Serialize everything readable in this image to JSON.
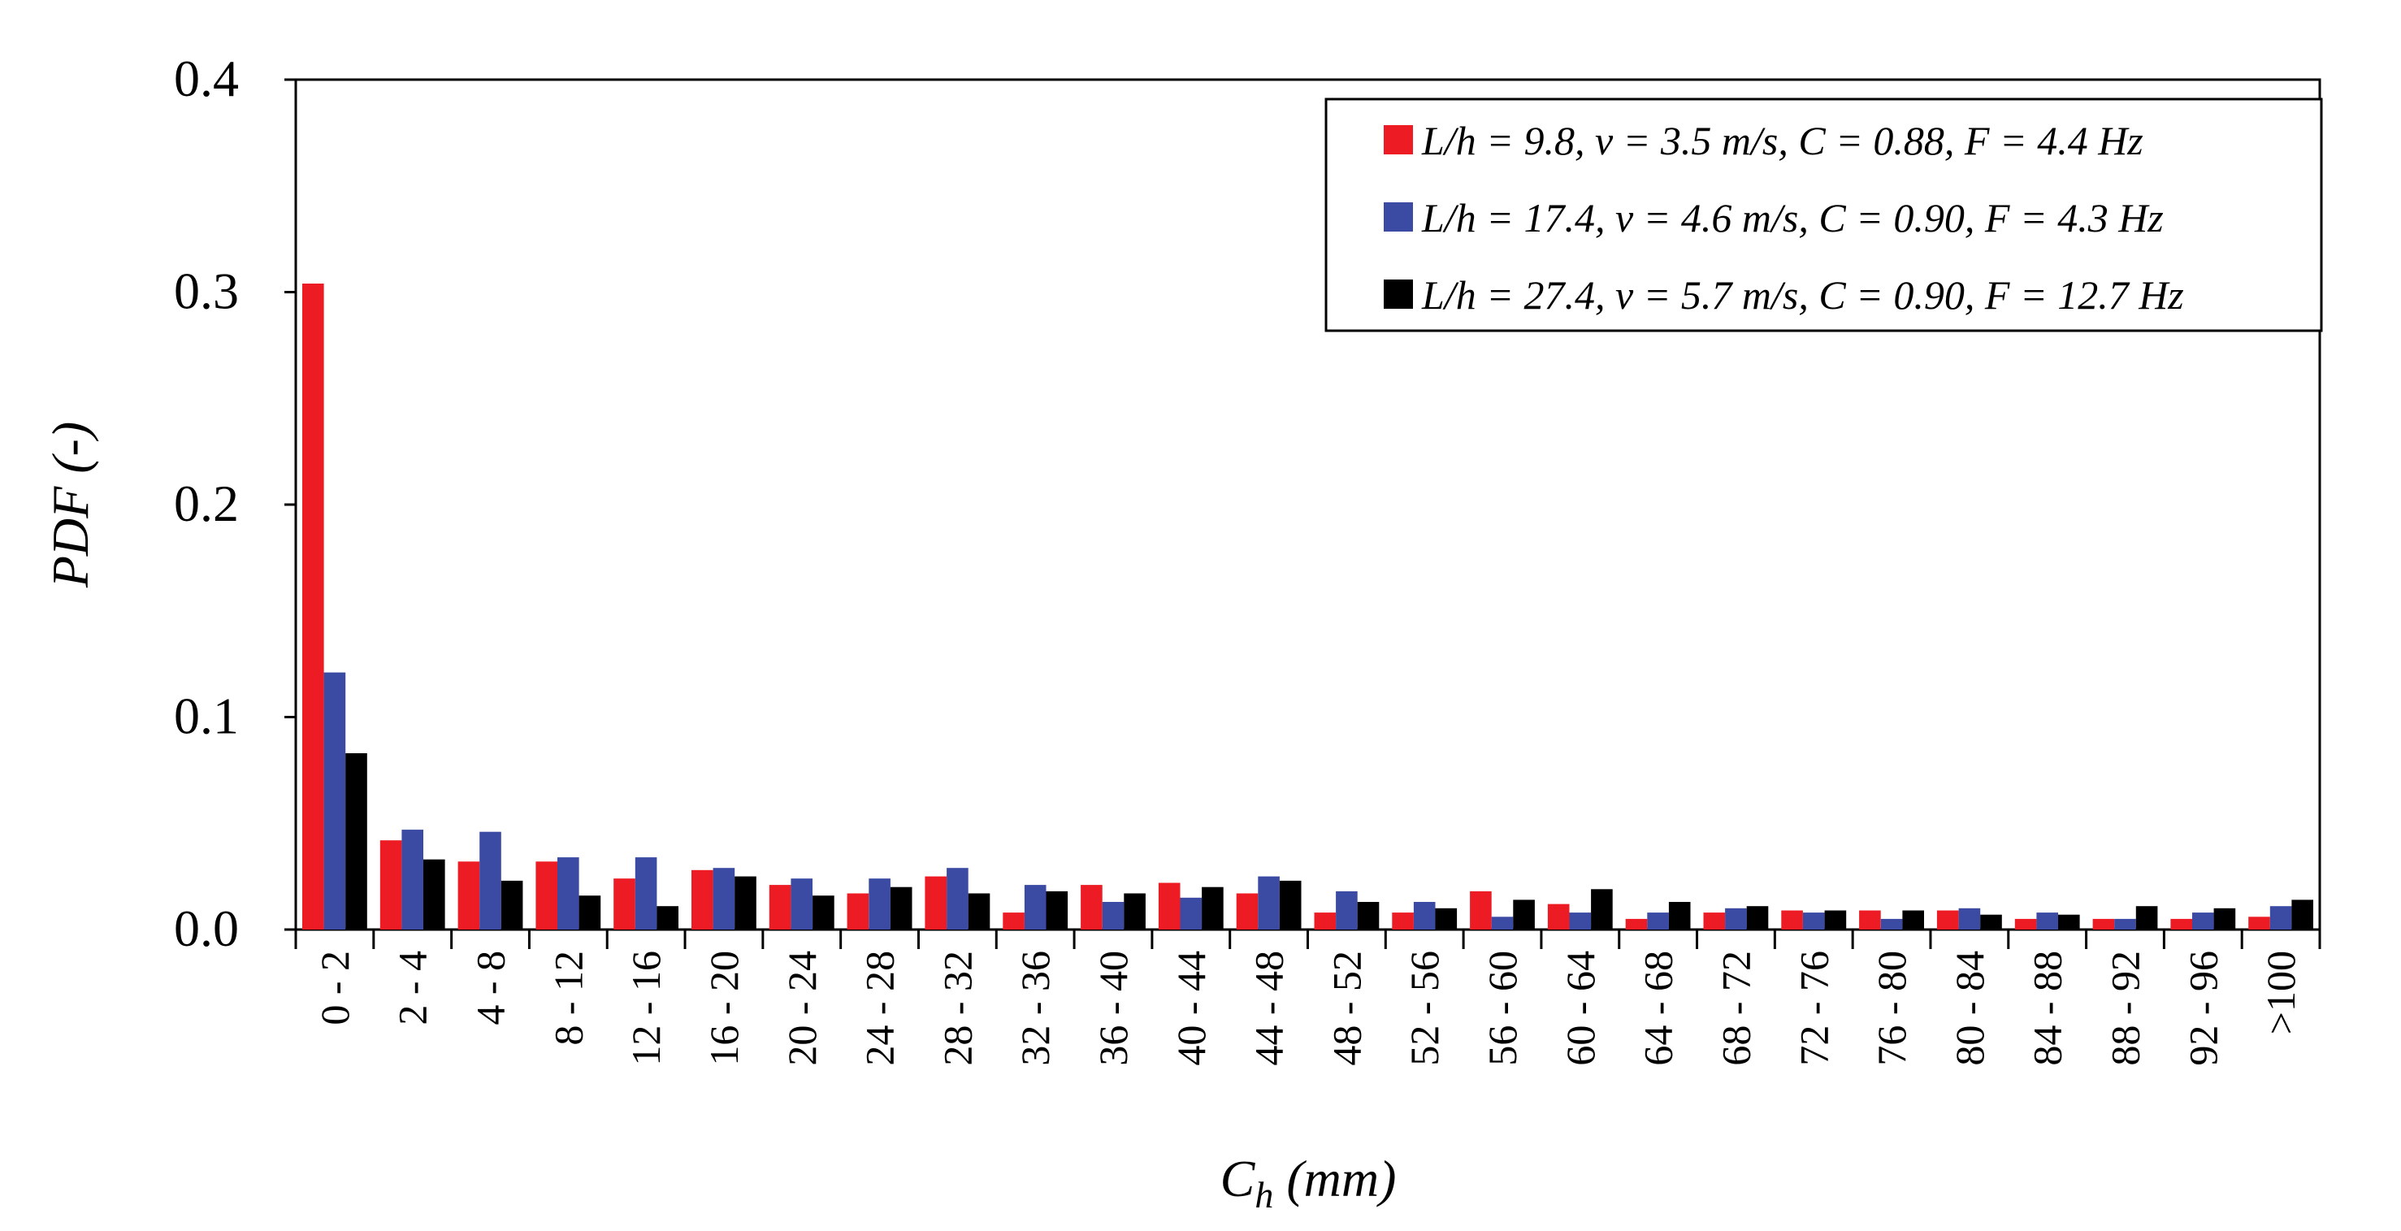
{
  "chart_data": {
    "type": "bar",
    "title": "",
    "xlabel": "C",
    "xlabel_sub": "h",
    "xlabel_unit": " (mm)",
    "ylabel": "PDF (-)",
    "ylim": [
      0,
      0.4
    ],
    "yticks": [
      "0.0",
      "0.1",
      "0.2",
      "0.3",
      "0.4"
    ],
    "legend_position": "top-right",
    "grid": false,
    "categories": [
      "0 - 2",
      "2 - 4",
      "4 - 8",
      "8 - 12",
      "12 - 16",
      "16 - 20",
      "20 - 24",
      "24 - 28",
      "28 - 32",
      "32 - 36",
      "36 - 40",
      "40 - 44",
      "44 - 48",
      "48 - 52",
      "52 - 56",
      "56 - 60",
      "60 - 64",
      "64 - 68",
      "68 - 72",
      "72 - 76",
      "76 - 80",
      "80 - 84",
      "84 - 88",
      "88 - 92",
      "92 - 96",
      ">100"
    ],
    "series": [
      {
        "name": "L/h = 9.8, v = 3.5 m/s, C = 0.88, F = 4.4 Hz",
        "color": "#ed1c24",
        "values": [
          0.304,
          0.042,
          0.032,
          0.032,
          0.024,
          0.028,
          0.021,
          0.017,
          0.025,
          0.008,
          0.021,
          0.022,
          0.017,
          0.008,
          0.008,
          0.018,
          0.012,
          0.005,
          0.008,
          0.009,
          0.009,
          0.009,
          0.005,
          0.005,
          0.005,
          0.006
        ]
      },
      {
        "name": "L/h = 17.4, v = 4.6 m/s, C = 0.90, F = 4.3 Hz",
        "color": "#3b4aa3",
        "values": [
          0.121,
          0.047,
          0.046,
          0.034,
          0.034,
          0.029,
          0.024,
          0.024,
          0.029,
          0.021,
          0.013,
          0.015,
          0.025,
          0.018,
          0.013,
          0.006,
          0.008,
          0.008,
          0.01,
          0.008,
          0.005,
          0.01,
          0.008,
          0.005,
          0.008,
          0.011
        ]
      },
      {
        "name": "L/h = 27.4, v = 5.7 m/s, C = 0.90, F = 12.7 Hz",
        "color": "#000000",
        "values": [
          0.083,
          0.033,
          0.023,
          0.016,
          0.011,
          0.025,
          0.016,
          0.02,
          0.017,
          0.018,
          0.017,
          0.02,
          0.023,
          0.013,
          0.01,
          0.014,
          0.019,
          0.013,
          0.011,
          0.009,
          0.009,
          0.007,
          0.007,
          0.011,
          0.01,
          0.014
        ]
      }
    ]
  }
}
